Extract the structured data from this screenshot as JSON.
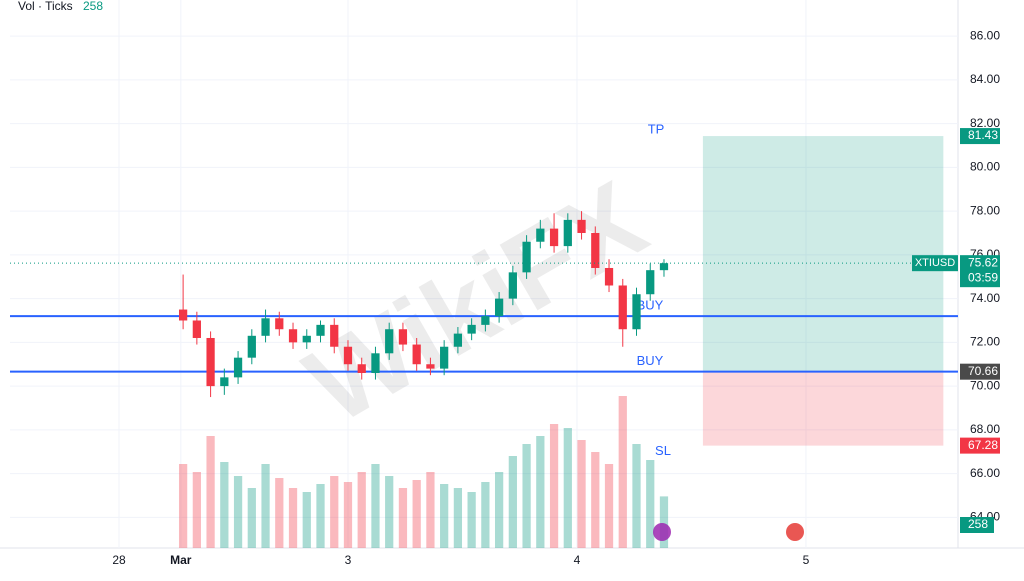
{
  "chart_data": {
    "type": "candlestick",
    "symbol": "XTIUSD",
    "volume_title": "Vol · Ticks",
    "volume_value": 258,
    "ylim": [
      62.6,
      87.65
    ],
    "yticks": [
      {
        "value": 64,
        "label": "64.00"
      },
      {
        "value": 66,
        "label": "66.00"
      },
      {
        "value": 68,
        "label": "68.00"
      },
      {
        "value": 70,
        "label": "70.00"
      },
      {
        "value": 72,
        "label": "72.00"
      },
      {
        "value": 74,
        "label": "74.00"
      },
      {
        "value": 76,
        "label": "76.00"
      },
      {
        "value": 78,
        "label": "78.00"
      },
      {
        "value": 80,
        "label": "80.00"
      },
      {
        "value": 82,
        "label": "82.00"
      },
      {
        "value": 84,
        "label": "84.00"
      },
      {
        "value": 86,
        "label": "86.00"
      }
    ],
    "xlim": [
      -0.476,
      3.664
    ],
    "xticks": [
      {
        "value": 0,
        "label": "28"
      },
      {
        "value": 0.27,
        "label": "Mar"
      },
      {
        "value": 1,
        "label": "3"
      },
      {
        "value": 2,
        "label": "4"
      },
      {
        "value": 3,
        "label": "5"
      }
    ],
    "grid": true,
    "up_color": "#089981",
    "down_color": "#f23645",
    "x": [
      0.28,
      0.34,
      0.4,
      0.46,
      0.52,
      0.58,
      0.64,
      0.7,
      0.76,
      0.82,
      0.88,
      0.94,
      1.0,
      1.06,
      1.12,
      1.18,
      1.24,
      1.3,
      1.36,
      1.42,
      1.48,
      1.54,
      1.6,
      1.66,
      1.72,
      1.78,
      1.84,
      1.9,
      1.96,
      2.02,
      2.08,
      2.14,
      2.2,
      2.26,
      2.32,
      2.38
    ],
    "open": [
      73.5,
      73.0,
      72.2,
      70.0,
      70.4,
      71.3,
      72.3,
      73.1,
      72.6,
      72.0,
      72.3,
      72.8,
      71.8,
      71.0,
      70.6,
      71.5,
      72.6,
      71.9,
      71.0,
      70.8,
      71.8,
      72.4,
      72.8,
      73.2,
      74.0,
      75.2,
      76.6,
      77.2,
      76.4,
      77.6,
      77.0,
      75.4,
      74.6,
      72.6,
      74.2,
      75.3
    ],
    "high": [
      75.1,
      73.4,
      72.5,
      70.8,
      71.6,
      72.6,
      73.5,
      73.4,
      72.9,
      72.6,
      73.0,
      73.1,
      72.1,
      71.3,
      71.8,
      72.9,
      72.9,
      72.2,
      71.3,
      72.1,
      72.7,
      73.1,
      73.5,
      74.3,
      75.5,
      76.9,
      77.6,
      77.9,
      77.9,
      78.0,
      77.3,
      75.8,
      74.9,
      74.5,
      75.6,
      75.8
    ],
    "low": [
      72.6,
      71.9,
      69.5,
      69.6,
      70.1,
      71.0,
      72.0,
      72.3,
      71.7,
      71.7,
      72.0,
      71.5,
      70.7,
      70.3,
      70.3,
      71.2,
      71.6,
      70.7,
      70.5,
      70.5,
      71.5,
      72.1,
      72.5,
      72.9,
      73.7,
      74.9,
      76.3,
      76.1,
      76.1,
      76.7,
      75.1,
      74.3,
      71.8,
      72.3,
      73.9,
      75.0
    ],
    "close": [
      73.0,
      72.2,
      70.0,
      70.4,
      71.3,
      72.3,
      73.1,
      72.6,
      72.0,
      72.3,
      72.8,
      71.8,
      71.0,
      70.6,
      71.5,
      72.6,
      71.9,
      71.0,
      70.8,
      71.8,
      72.4,
      72.8,
      73.2,
      74.0,
      75.2,
      76.6,
      77.2,
      76.4,
      77.6,
      77.0,
      75.4,
      74.6,
      72.6,
      74.2,
      75.3,
      75.62
    ],
    "volume": [
      420,
      380,
      560,
      430,
      360,
      300,
      420,
      350,
      300,
      280,
      320,
      360,
      330,
      380,
      420,
      360,
      300,
      340,
      380,
      320,
      300,
      280,
      330,
      380,
      460,
      520,
      560,
      620,
      600,
      540,
      480,
      420,
      760,
      520,
      440,
      258
    ],
    "volume_lim": [
      0,
      1000
    ],
    "last_price": {
      "value": 75.62,
      "countdown": "03:59"
    },
    "levels": [
      {
        "value": 73.2,
        "label": "BUY"
      },
      {
        "value": 70.66,
        "label": "BUY"
      }
    ],
    "level_color": "#2962ff",
    "position": {
      "tp": 81.43,
      "entry": 70.66,
      "sl": 67.28,
      "x": [
        2.55,
        3.6
      ],
      "tp_label": "TP",
      "sl_label": "SL"
    },
    "watermark": "WikiFX"
  }
}
